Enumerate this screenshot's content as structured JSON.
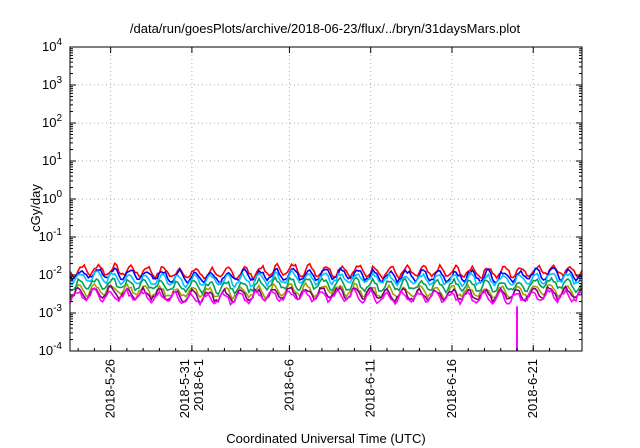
{
  "chart_data": {
    "type": "line",
    "title": "/data/run/goesPlots/archive/2018-06-23/flux/../bryn/31daysMars.plot",
    "xlabel": "Coordinated Universal Time (UTC)",
    "ylabel": "cGy/day",
    "yscale": "log",
    "ylim": [
      0.0001,
      10000
    ],
    "xlim": [
      "2018-05-23T12:00",
      "2018-06-24T00:00"
    ],
    "grid": true,
    "legend": "none",
    "y_ticks": [
      {
        "value": 0.0001,
        "base": "10",
        "exp": "-4"
      },
      {
        "value": 0.001,
        "base": "10",
        "exp": "-3"
      },
      {
        "value": 0.01,
        "base": "10",
        "exp": "-2"
      },
      {
        "value": 0.1,
        "base": "10",
        "exp": "-1"
      },
      {
        "value": 1,
        "base": "10",
        "exp": "0"
      },
      {
        "value": 10,
        "base": "10",
        "exp": "1"
      },
      {
        "value": 100,
        "base": "10",
        "exp": "2"
      },
      {
        "value": 1000,
        "base": "10",
        "exp": "3"
      },
      {
        "value": 10000,
        "base": "10",
        "exp": "4"
      }
    ],
    "x_ticks": [
      {
        "date": "2018-05-26",
        "lines": [
          "2018-5-26"
        ]
      },
      {
        "date": "2018-05-31",
        "lines": [
          "2018-5-31",
          "2018-6-1"
        ]
      },
      {
        "date": "2018-06-06",
        "lines": [
          "2018-6-6"
        ]
      },
      {
        "date": "2018-06-11",
        "lines": [
          "2018-6-11"
        ]
      },
      {
        "date": "2018-06-16",
        "lines": [
          "2018-6-16"
        ]
      },
      {
        "date": "2018-06-21",
        "lines": [
          "2018-6-21"
        ]
      }
    ],
    "series": [
      {
        "color": "#ff0000",
        "x": [
          "2018-05-23",
          "2018-05-25",
          "2018-05-27",
          "2018-05-29",
          "2018-05-31",
          "2018-06-02",
          "2018-06-04",
          "2018-06-06",
          "2018-06-08",
          "2018-06-10",
          "2018-06-12",
          "2018-06-14",
          "2018-06-16",
          "2018-06-18",
          "2018-06-20",
          "2018-06-22",
          "2018-06-24"
        ],
        "y": [
          0.012,
          0.014,
          0.013,
          0.012,
          0.011,
          0.011,
          0.012,
          0.014,
          0.013,
          0.013,
          0.012,
          0.012,
          0.012,
          0.012,
          0.012,
          0.014,
          0.012
        ]
      },
      {
        "color": "#0000ff",
        "x": [
          "2018-05-23",
          "2018-05-25",
          "2018-05-27",
          "2018-05-29",
          "2018-05-31",
          "2018-06-02",
          "2018-06-04",
          "2018-06-06",
          "2018-06-08",
          "2018-06-10",
          "2018-06-12",
          "2018-06-14",
          "2018-06-16",
          "2018-06-18",
          "2018-06-20",
          "2018-06-22",
          "2018-06-24"
        ],
        "y": [
          0.0095,
          0.011,
          0.0105,
          0.0095,
          0.009,
          0.009,
          0.0095,
          0.011,
          0.0105,
          0.0105,
          0.0095,
          0.0095,
          0.0095,
          0.0095,
          0.0095,
          0.011,
          0.0095
        ]
      },
      {
        "color": "#00c0ff",
        "x": [
          "2018-05-23",
          "2018-05-25",
          "2018-05-27",
          "2018-05-29",
          "2018-05-31",
          "2018-06-02",
          "2018-06-04",
          "2018-06-06",
          "2018-06-08",
          "2018-06-10",
          "2018-06-12",
          "2018-06-14",
          "2018-06-16",
          "2018-06-18",
          "2018-06-20",
          "2018-06-22",
          "2018-06-24"
        ],
        "y": [
          0.0075,
          0.0088,
          0.0083,
          0.0075,
          0.007,
          0.007,
          0.0075,
          0.0088,
          0.0083,
          0.0083,
          0.0075,
          0.0075,
          0.0075,
          0.0075,
          0.0075,
          0.0088,
          0.0075
        ]
      },
      {
        "color": "#00a060",
        "x": [
          "2018-05-23",
          "2018-05-25",
          "2018-05-27",
          "2018-05-29",
          "2018-05-31",
          "2018-06-02",
          "2018-06-04",
          "2018-06-06",
          "2018-06-08",
          "2018-06-10",
          "2018-06-12",
          "2018-06-14",
          "2018-06-16",
          "2018-06-18",
          "2018-06-20",
          "2018-06-22",
          "2018-06-24"
        ],
        "y": [
          0.0052,
          0.006,
          0.0057,
          0.0052,
          0.0048,
          0.0048,
          0.0052,
          0.006,
          0.0057,
          0.0057,
          0.0052,
          0.0052,
          0.0052,
          0.0052,
          0.0052,
          0.006,
          0.0052
        ]
      },
      {
        "color": "#a0a000",
        "x": [
          "2018-05-23",
          "2018-05-25",
          "2018-05-27",
          "2018-05-29",
          "2018-05-31",
          "2018-06-02",
          "2018-06-04",
          "2018-06-06",
          "2018-06-08",
          "2018-06-10",
          "2018-06-12",
          "2018-06-14",
          "2018-06-16",
          "2018-06-18",
          "2018-06-20",
          "2018-06-22",
          "2018-06-24"
        ],
        "y": [
          0.0036,
          0.0042,
          0.004,
          0.0036,
          0.0034,
          0.0034,
          0.0036,
          0.0042,
          0.004,
          0.004,
          0.0036,
          0.0036,
          0.0036,
          0.0036,
          0.0036,
          0.0042,
          0.0036
        ]
      },
      {
        "color": "#800080",
        "x": [
          "2018-05-23",
          "2018-05-25",
          "2018-05-27",
          "2018-05-29",
          "2018-05-31",
          "2018-06-02",
          "2018-06-04",
          "2018-06-06",
          "2018-06-08",
          "2018-06-10",
          "2018-06-12",
          "2018-06-14",
          "2018-06-16",
          "2018-06-18",
          "2018-06-20",
          "2018-06-22",
          "2018-06-24"
        ],
        "y": [
          0.003,
          0.0035,
          0.0033,
          0.003,
          0.0028,
          0.0028,
          0.003,
          0.0035,
          0.0033,
          0.0033,
          0.003,
          0.003,
          0.003,
          0.003,
          0.003,
          0.0035,
          0.003
        ]
      },
      {
        "color": "#ff00ff",
        "x": [
          "2018-05-23",
          "2018-05-25",
          "2018-05-27",
          "2018-05-29",
          "2018-05-31",
          "2018-06-02",
          "2018-06-04",
          "2018-06-06",
          "2018-06-08",
          "2018-06-10",
          "2018-06-12",
          "2018-06-14",
          "2018-06-16",
          "2018-06-18",
          "2018-06-20",
          "2018-06-22",
          "2018-06-24"
        ],
        "y": [
          0.0026,
          0.003,
          0.0028,
          0.0026,
          0.0024,
          0.0024,
          0.0026,
          0.003,
          0.0028,
          0.0028,
          0.0026,
          0.0026,
          0.0026,
          0.0026,
          0.0026,
          0.003,
          0.0026
        ]
      }
    ],
    "annotations": [
      {
        "x": "2018-06-20T00:00",
        "y_low": 0.0001,
        "color": "#ff00ff"
      }
    ]
  }
}
